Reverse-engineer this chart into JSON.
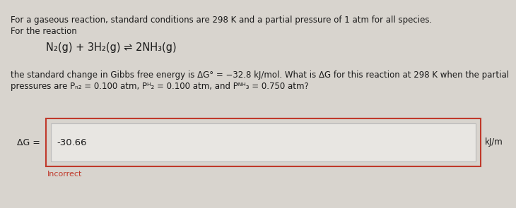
{
  "bg_color": "#d8d4ce",
  "line1": "For a gaseous reaction, standard conditions are 298 K and a partial pressure of 1 atm for all species.",
  "line2": "For the reaction",
  "reaction": "N₂(g) + 3H₂(g) ⇌ 2NH₃(g)",
  "line3": "the standard change in Gibbs free energy is ΔG° = −32.8 kJ/mol. What is ΔG for this reaction at 298 K when the partial",
  "line4": "pressures are Pₙ₂ = 0.100 atm, Pᴴ₂ = 0.100 atm, and Pᴺᴴ₃ = 0.750 atm?",
  "answer_value": "-30.66",
  "delta_g_label": "ΔG =",
  "units_label": "kJ/m",
  "incorrect_label": "Incorrect",
  "incorrect_color": "#c0392b",
  "outer_box_border_color": "#c0392b",
  "outer_box_bg": "#d8d4ce",
  "inner_box_border_color": "#bbbbbb",
  "inner_box_bg": "#e8e6e2",
  "text_color": "#1a1a1a",
  "font_size_body": 8.5,
  "font_size_reaction": 10.5,
  "font_size_answer": 9.5,
  "font_size_incorrect": 8.0
}
